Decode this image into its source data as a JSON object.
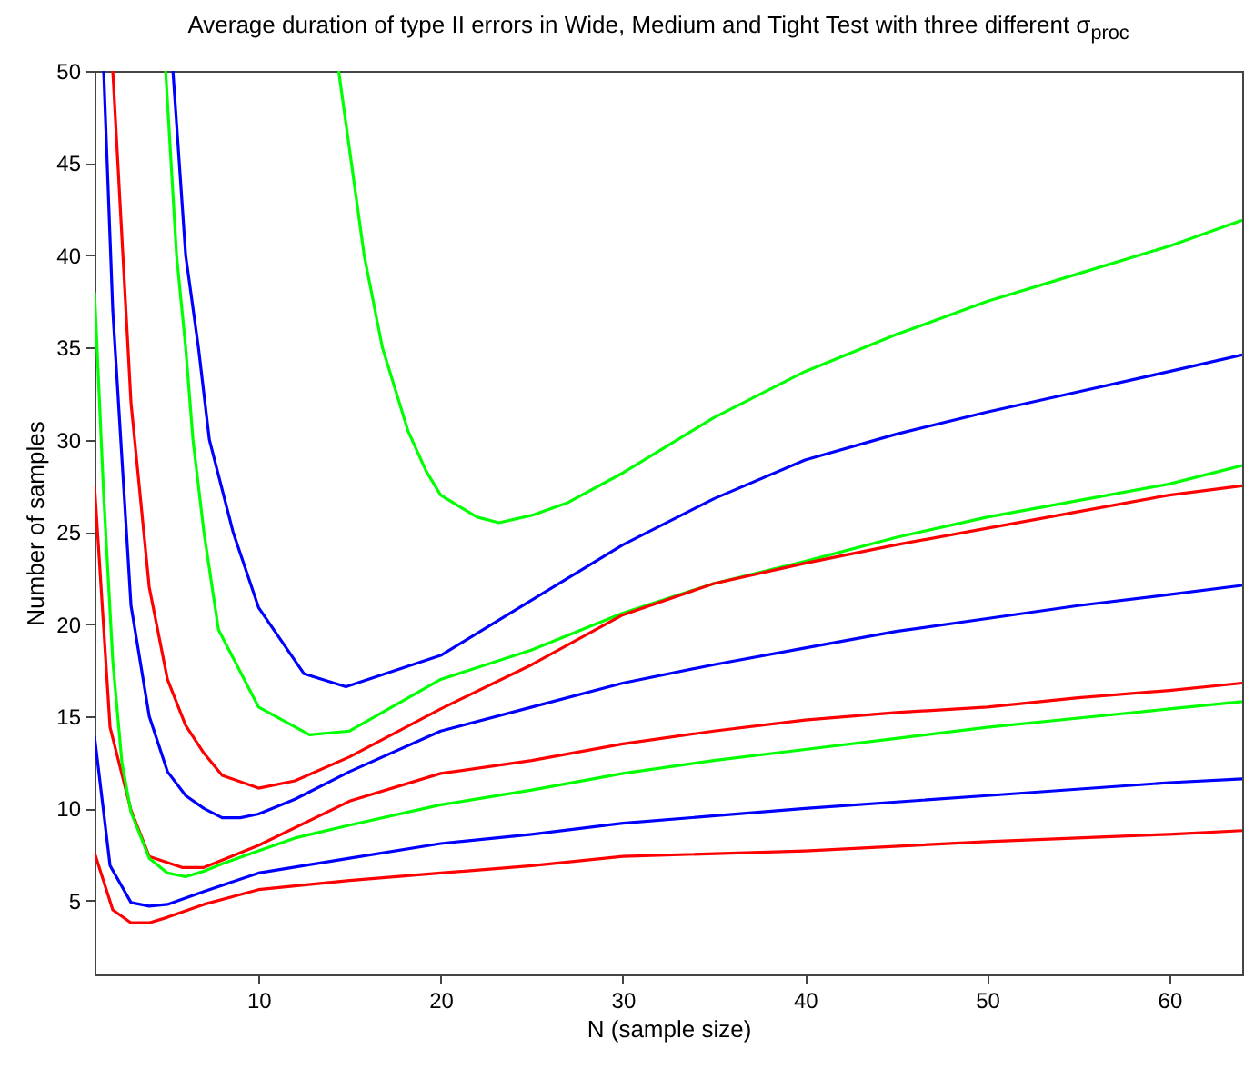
{
  "chart_data": {
    "type": "line",
    "title": "Average duration of type II errors in Wide, Medium and Tight Test with three different σ$_{proc}$",
    "xlabel": "N (sample size)",
    "ylabel": "Number of samples",
    "xlim": [
      1,
      64
    ],
    "ylim": [
      1,
      50
    ],
    "xticks": [
      10,
      20,
      30,
      40,
      50,
      60
    ],
    "yticks": [
      5,
      10,
      15,
      20,
      25,
      30,
      35,
      40,
      45,
      50
    ],
    "grid": false,
    "marker": "none",
    "line_style": "solid",
    "series": [
      {
        "color": "#00ff00",
        "x": [
          14.4,
          15.8,
          16.8,
          18.2,
          19.2,
          20,
          22,
          23.2,
          25,
          27,
          30,
          35,
          40,
          45,
          50,
          55,
          60,
          64
        ],
        "values": [
          50,
          40,
          35,
          30.5,
          28.3,
          27.0,
          25.8,
          25.5,
          25.9,
          26.6,
          28.2,
          31.2,
          33.7,
          35.7,
          37.5,
          39.0,
          40.5,
          41.9
        ]
      },
      {
        "color": "#0000ff",
        "x": [
          5.3,
          6.0,
          6.7,
          7.3,
          8.6,
          10,
          12.5,
          14.8,
          20,
          25,
          30,
          35,
          40,
          45,
          50,
          55,
          60,
          64
        ],
        "values": [
          50,
          40,
          35,
          30,
          25,
          20.9,
          17.3,
          16.6,
          18.3,
          21.3,
          24.3,
          26.8,
          28.9,
          30.3,
          31.5,
          32.6,
          33.7,
          34.6
        ]
      },
      {
        "color": "#00ff00",
        "x": [
          4.9,
          5.5,
          6.0,
          6.4,
          7.0,
          7.8,
          10,
          12.8,
          15,
          20,
          25,
          30,
          35,
          40,
          45,
          50,
          55,
          60,
          64
        ],
        "values": [
          50,
          40,
          35,
          30,
          25,
          19.7,
          15.5,
          14.0,
          14.2,
          17.0,
          18.6,
          20.6,
          22.2,
          23.4,
          24.7,
          25.8,
          26.7,
          27.6,
          28.6
        ]
      },
      {
        "color": "#ff0000",
        "x": [
          2,
          3,
          4,
          5,
          6,
          7,
          8,
          10,
          12,
          15,
          20,
          25,
          30,
          35,
          40,
          45,
          50,
          55,
          60,
          64
        ],
        "values": [
          50,
          32,
          22,
          17,
          14.5,
          13,
          11.8,
          11.1,
          11.5,
          12.8,
          15.4,
          17.8,
          20.5,
          22.2,
          23.3,
          24.3,
          25.2,
          26.1,
          27.0,
          27.5
        ]
      },
      {
        "color": "#0000ff",
        "x": [
          1.5,
          2,
          3,
          4,
          5,
          6,
          7,
          8,
          9,
          10,
          12,
          15,
          20,
          25,
          30,
          35,
          40,
          45,
          50,
          55,
          60,
          64
        ],
        "values": [
          50,
          37,
          21,
          15,
          12,
          10.7,
          10,
          9.5,
          9.5,
          9.7,
          10.5,
          12,
          14.2,
          15.5,
          16.8,
          17.8,
          18.7,
          19.6,
          20.3,
          21,
          21.6,
          22.1
        ]
      },
      {
        "color": "#ff0000",
        "x": [
          1,
          1.85,
          3,
          4,
          5.8,
          7,
          8,
          10,
          15,
          20,
          25,
          30,
          35,
          40,
          45,
          50,
          55,
          60,
          64
        ],
        "values": [
          27.5,
          14.4,
          9.9,
          7.4,
          6.8,
          6.8,
          7.2,
          8.0,
          10.4,
          11.9,
          12.6,
          13.5,
          14.2,
          14.8,
          15.2,
          15.5,
          16.0,
          16.4,
          16.8
        ]
      },
      {
        "color": "#00ff00",
        "x": [
          1,
          1.5,
          2,
          2.5,
          3,
          4,
          5,
          6,
          7,
          8,
          10,
          12,
          15,
          20,
          25,
          30,
          35,
          40,
          45,
          50,
          55,
          60,
          64
        ],
        "values": [
          38,
          27,
          18,
          12.5,
          9.8,
          7.3,
          6.5,
          6.3,
          6.6,
          7.0,
          7.7,
          8.4,
          9.1,
          10.2,
          11,
          11.9,
          12.6,
          13.2,
          13.8,
          14.4,
          14.9,
          15.4,
          15.8
        ]
      },
      {
        "color": "#0000ff",
        "x": [
          1,
          1.85,
          3,
          4,
          5,
          7,
          10,
          15,
          20,
          25,
          30,
          40,
          50,
          60,
          64
        ],
        "values": [
          13.9,
          6.9,
          4.9,
          4.7,
          4.8,
          5.5,
          6.5,
          7.3,
          8.1,
          8.6,
          9.2,
          10.0,
          10.7,
          11.4,
          11.6
        ]
      },
      {
        "color": "#ff0000",
        "x": [
          1,
          2,
          3,
          4,
          5,
          7,
          10,
          15,
          20,
          25,
          30,
          40,
          50,
          60,
          64
        ],
        "values": [
          7.6,
          4.5,
          3.8,
          3.8,
          4.1,
          4.8,
          5.6,
          6.1,
          6.5,
          6.9,
          7.4,
          7.7,
          8.2,
          8.6,
          8.8
        ]
      }
    ]
  }
}
